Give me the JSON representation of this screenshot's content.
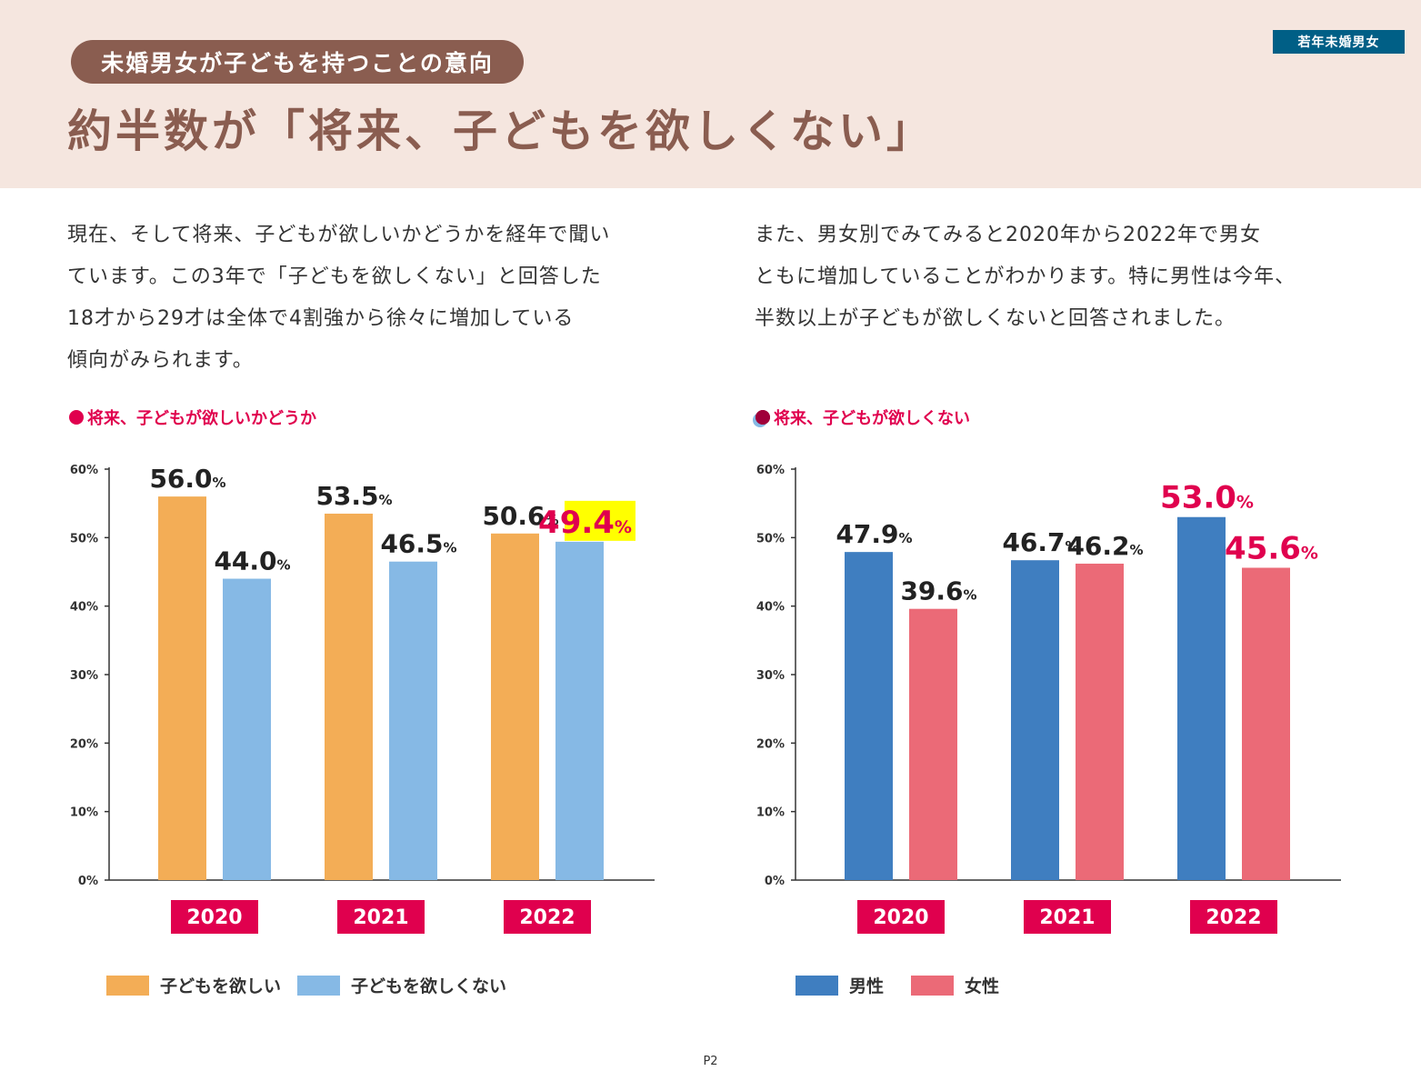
{
  "header": {
    "pill": "未婚男女が子どもを持つことの意向",
    "tag": "若年未婚男女",
    "headline": "約半数が「将来、子どもを欲しくない」"
  },
  "body": {
    "left": [
      "現在、そして将来、子どもが欲しいかどうかを経年で聞い",
      "ています。この3年で「子どもを欲しくない」と回答した",
      "18才から29才は全体で4割強から徐々に増加している",
      "傾向がみられます。"
    ],
    "right": [
      "また、男女別でみてみると2020年から2022年で男女",
      "ともに増加していることがわかります。特に男性は今年、",
      "半数以上が子どもが欲しくないと回答されました。"
    ]
  },
  "colors": {
    "header_bg": "#f5e6df",
    "brown": "#8a5d50",
    "tag_blue": "#005f86",
    "orange": "#f3ad56",
    "light_blue": "#86b9e5",
    "blue": "#3f7ec0",
    "pink": "#eb6a77",
    "magenta": "#e0004e",
    "yellow_highlight": "#ffff00"
  },
  "chart_data": [
    {
      "type": "bar",
      "title": "将来、子どもが欲しいかどうか",
      "categories": [
        "2020",
        "2021",
        "2022"
      ],
      "series": [
        {
          "name": "子どもを欲しい",
          "values": [
            56.0,
            53.5,
            50.6
          ],
          "color": "#f3ad56"
        },
        {
          "name": "子どもを欲しくない",
          "values": [
            44.0,
            46.5,
            49.4
          ],
          "color": "#86b9e5"
        }
      ],
      "value_labels": [
        [
          "56.0",
          "53.5",
          "50.6"
        ],
        [
          "44.0",
          "46.5",
          "49.4"
        ]
      ],
      "highlight": {
        "series": 1,
        "index": 2,
        "label_color": "#e0004e",
        "background": "#ffff00"
      },
      "unit": "%",
      "ylim": [
        0,
        60
      ],
      "yticks": [
        "0%",
        "10%",
        "20%",
        "30%",
        "40%",
        "50%",
        "60%"
      ],
      "grid": false,
      "legend_position": "bottom"
    },
    {
      "type": "bar",
      "title": "将来、子どもが欲しくない",
      "categories": [
        "2020",
        "2021",
        "2022"
      ],
      "series": [
        {
          "name": "男性",
          "values": [
            47.9,
            46.7,
            53.0
          ],
          "color": "#3f7ec0"
        },
        {
          "name": "女性",
          "values": [
            39.6,
            46.2,
            45.6
          ],
          "color": "#eb6a77"
        }
      ],
      "value_labels": [
        [
          "47.9",
          "46.7",
          "53.0"
        ],
        [
          "39.6",
          "46.2",
          "45.6"
        ]
      ],
      "highlight": {
        "index": 2,
        "label_color": "#e0004e"
      },
      "unit": "%",
      "ylim": [
        0,
        60
      ],
      "yticks": [
        "0%",
        "10%",
        "20%",
        "30%",
        "40%",
        "50%",
        "60%"
      ],
      "grid": false,
      "legend_position": "bottom"
    }
  ],
  "page": "P2"
}
